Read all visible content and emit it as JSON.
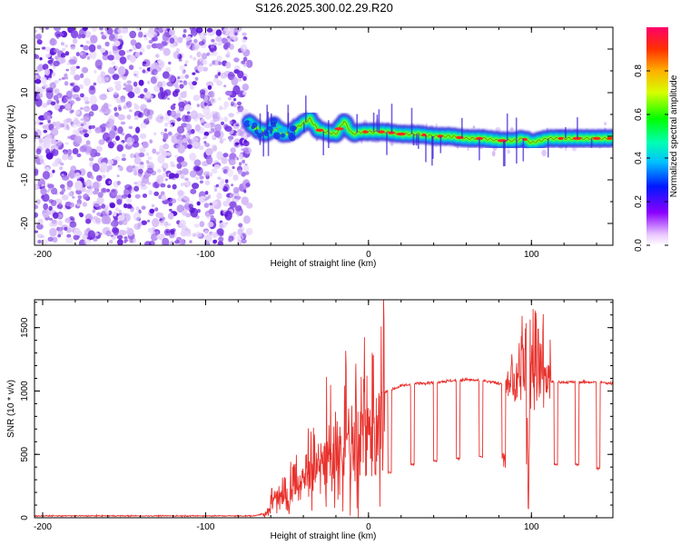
{
  "title": "S126.2025.300.02.29.R20",
  "chart_data": [
    {
      "type": "heatmap",
      "title": "S126.2025.300.02.29.R20",
      "xlabel": "Height of straight line (km)",
      "ylabel": "Frequency (Hz)",
      "xlim": [
        -205,
        150
      ],
      "ylim": [
        -25,
        25
      ],
      "xticks": [
        -200,
        -100,
        0,
        100
      ],
      "yticks": [
        -20,
        -10,
        0,
        10,
        20
      ],
      "colorbar": {
        "label": "Normalized spectral amplitude",
        "range": [
          0,
          1
        ],
        "ticks": [
          "0.0",
          "0.2",
          "0.4",
          "0.6",
          "0.8"
        ],
        "tick_values": [
          0.0,
          0.2,
          0.4,
          0.6,
          0.8
        ]
      },
      "noise_region_x": [
        -205,
        -73
      ],
      "signal_track": {
        "x": [
          -73,
          -68,
          -62,
          -58,
          -52,
          -47,
          -42,
          -36,
          -31,
          -26,
          -20,
          -15,
          -10,
          -5,
          0,
          10,
          20,
          30,
          40,
          50,
          60,
          70,
          80,
          90,
          95,
          100,
          105,
          110,
          120,
          130,
          140,
          150
        ],
        "freq": [
          3,
          1.5,
          0.5,
          2.5,
          0.5,
          1,
          2.5,
          4,
          1.5,
          1,
          0.5,
          3.5,
          0.5,
          1,
          1,
          1,
          0.5,
          0.5,
          0,
          0,
          -0.5,
          -0.5,
          -1,
          -1,
          -0.5,
          -1.5,
          -1,
          -0.5,
          -0.5,
          -0.5,
          -0.5,
          -0.5
        ]
      }
    },
    {
      "type": "line",
      "xlabel": "Height of straight line (km)",
      "ylabel": "SNR (10 * v/v)",
      "xlim": [
        -205,
        150
      ],
      "ylim": [
        0,
        1720
      ],
      "xticks": [
        -200,
        -100,
        0,
        100
      ],
      "yticks": [
        0,
        500,
        1000,
        1500
      ],
      "series": [
        {
          "name": "SNR",
          "color": "#e8312c",
          "envelope_x": [
            -205,
            -70,
            -63,
            -58,
            -50,
            -45,
            -40,
            -30,
            -20,
            -10,
            0,
            10,
            20,
            30,
            40,
            50,
            60,
            70,
            80,
            90,
            95,
            100,
            105,
            110,
            120,
            130,
            140,
            150
          ],
          "envelope_y": [
            15,
            15,
            40,
            180,
            250,
            330,
            420,
            560,
            700,
            820,
            920,
            990,
            1040,
            1060,
            1070,
            1080,
            1090,
            1080,
            1060,
            1070,
            1150,
            1300,
            1200,
            1070,
            1070,
            1070,
            1070,
            1060
          ],
          "dropouts_x": [
            -2,
            12,
            26,
            40,
            54,
            68,
            82,
            97,
            114,
            127,
            140
          ],
          "dropout_level": [
            260,
            360,
            420,
            450,
            470,
            480,
            460,
            440,
            420,
            420,
            390
          ]
        }
      ]
    }
  ],
  "colors": {
    "noise": "#7a3fe0",
    "axis": "#000000",
    "line": "#e8312c"
  }
}
